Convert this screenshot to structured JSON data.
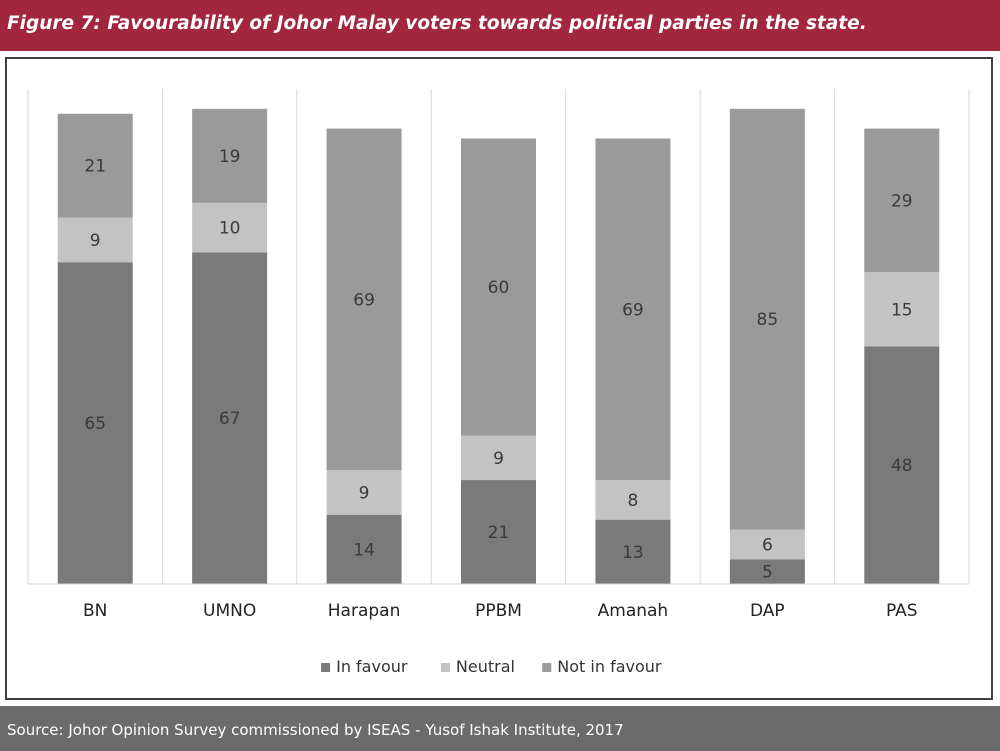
{
  "header": {
    "title": "Figure 7: Favourability of Johor Malay voters towards political parties in the state."
  },
  "footer": {
    "source": "Source: Johor Opinion Survey commissioned by ISEAS - Yusof Ishak Institute, 2017"
  },
  "colors": {
    "header_bg": "#a3263f",
    "footer_bg": "#6b6b6b",
    "in_favour": "#7a7a7a",
    "neutral": "#c3c3c3",
    "not_in_favour": "#9a9a9a"
  },
  "chart_data": {
    "type": "bar",
    "stacked": true,
    "categories": [
      "BN",
      "UMNO",
      "Harapan",
      "PPBM",
      "Amanah",
      "DAP",
      "PAS"
    ],
    "series": [
      {
        "name": "In favour",
        "color": "#7a7a7a",
        "values": [
          65,
          67,
          14,
          21,
          13,
          5,
          48
        ]
      },
      {
        "name": "Neutral",
        "color": "#c3c3c3",
        "values": [
          9,
          10,
          9,
          9,
          8,
          6,
          15
        ]
      },
      {
        "name": "Not in favour",
        "color": "#9a9a9a",
        "values": [
          21,
          19,
          69,
          60,
          69,
          85,
          29
        ]
      }
    ],
    "data_labels": true,
    "grid": "vertical category separators",
    "legend_position": "bottom"
  }
}
